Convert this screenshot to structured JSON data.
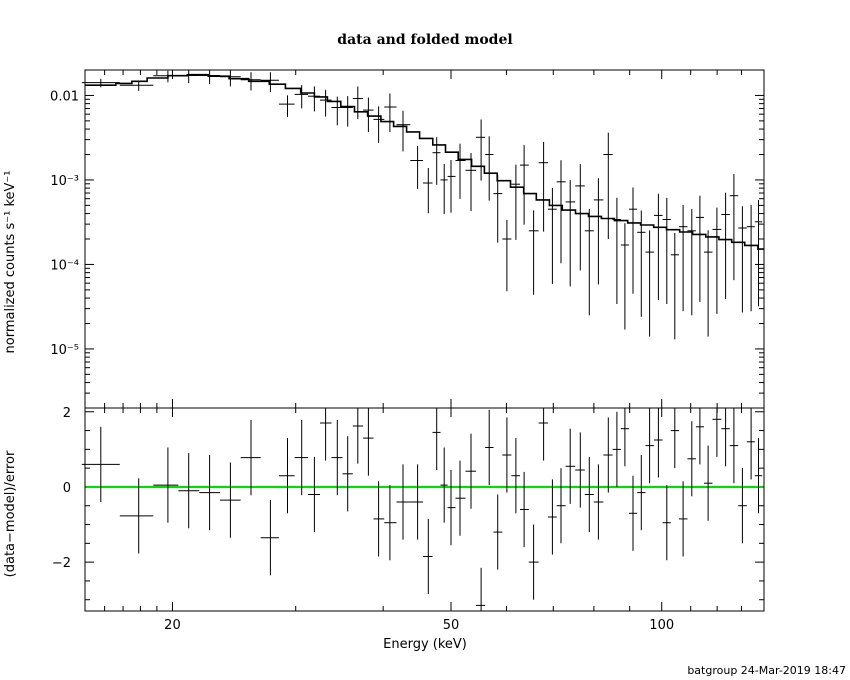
{
  "chart_data": [
    {
      "panel": "top",
      "type": "scatter",
      "title": "data and folded model",
      "ylabel": "normalized counts s⁻¹ keV⁻¹",
      "x_scale": "log",
      "y_scale": "log",
      "xlim": [
        15,
        140
      ],
      "ylim": [
        2e-06,
        0.02
      ],
      "y_ticks": [
        0.01,
        0.001,
        0.0001,
        1e-05
      ],
      "y_tick_labels": [
        "0.01",
        "10⁻³",
        "10⁻⁴",
        "10⁻⁵"
      ],
      "series": [
        {
          "style": "crosses",
          "x": [
            15.8,
            17.9,
            19.7,
            21.1,
            22.6,
            24.2,
            25.9,
            27.6,
            29.2,
            30.6,
            31.9,
            33.1,
            34.4,
            35.6,
            36.8,
            38.1,
            39.4,
            40.9,
            42.7,
            44.8,
            46.4,
            47.7,
            48.9,
            50.0,
            51.5,
            53.4,
            55.2,
            56.7,
            58.3,
            60.1,
            61.9,
            63.6,
            65.6,
            67.8,
            69.8,
            71.8,
            74.0,
            76.5,
            78.8,
            81.2,
            83.9,
            86.3,
            88.6,
            91.0,
            93.5,
            96.1,
            98.9,
            101.7,
            104.4,
            107.3,
            110.4,
            113.4,
            116.5,
            119.9,
            123.4,
            126.8,
            130.4,
            134.2,
            137.5
          ],
          "y": [
            0.0142,
            0.0132,
            0.0171,
            0.0172,
            0.0172,
            0.0166,
            0.0153,
            0.0151,
            0.0079,
            0.0103,
            0.0098,
            0.0088,
            0.0072,
            0.0072,
            0.0092,
            0.0067,
            0.0052,
            0.0073,
            0.0045,
            0.0017,
            0.00092,
            0.0021,
            0.001,
            0.0011,
            0.0017,
            0.0013,
            0.0032,
            0.002,
            0.00069,
            0.0002,
            0.00089,
            0.0015,
            0.00025,
            0.0016,
            0.00045,
            0.00095,
            0.00055,
            0.00085,
            0.00025,
            0.00058,
            0.002,
            0.00034,
            0.00017,
            0.00045,
            0.00024,
            0.00014,
            0.00038,
            0.00034,
            0.00013,
            0.00028,
            0.00025,
            0.00036,
            0.00014,
            0.00026,
            0.00039,
            0.00065,
            0.00027,
            0.00028,
            0.00032
          ]
        },
        {
          "style": "step-line",
          "x": [
            15.0,
            16.6,
            17.5,
            18.4,
            19.7,
            21.0,
            22.5,
            24.1,
            25.7,
            27.5,
            29.0,
            30.5,
            31.9,
            33.3,
            34.8,
            36.4,
            38.0,
            39.7,
            41.4,
            43.2,
            45.1,
            47.1,
            49.1,
            51.2,
            53.5,
            55.8,
            58.2,
            60.8,
            63.5,
            66.2,
            69.1,
            72.1,
            75.3,
            78.6,
            82.0,
            85.6,
            89.4,
            93.3,
            97.4,
            101.6,
            106.1,
            110.7,
            115.6,
            120.7,
            125.9,
            131.4,
            137.2
          ],
          "y": [
            0.0132,
            0.0139,
            0.0147,
            0.0161,
            0.0171,
            0.0176,
            0.0169,
            0.0158,
            0.0147,
            0.0136,
            0.0121,
            0.0107,
            0.0096,
            0.0085,
            0.0074,
            0.0064,
            0.0057,
            0.0049,
            0.0043,
            0.0037,
            0.0031,
            0.0026,
            0.00213,
            0.00175,
            0.00145,
            0.0012,
            0.00098,
            0.00082,
            0.00069,
            0.00058,
            0.0005,
            0.00044,
            0.0004,
            0.00037,
            0.00035,
            0.00033,
            0.00031,
            0.000293,
            0.000275,
            0.000258,
            0.000242,
            0.000227,
            0.000212,
            0.000197,
            0.000183,
            0.000168,
            0.000152
          ]
        }
      ]
    },
    {
      "panel": "bottom",
      "type": "scatter",
      "xlabel": "Energy (keV)",
      "ylabel": "(data−model)/error",
      "x_scale": "log",
      "xlim": [
        15,
        140
      ],
      "ylim": [
        -3.3,
        2.1
      ],
      "x_ticks": [
        20,
        50,
        100
      ],
      "x_tick_labels": [
        "20",
        "50",
        "100"
      ],
      "y_ticks": [
        2,
        0,
        -2
      ],
      "y_tick_labels": [
        "2",
        "0",
        "−2"
      ],
      "zero_line_color": "#00e000",
      "series": [
        {
          "style": "crosses",
          "x": [
            15.8,
            17.9,
            19.7,
            21.1,
            22.6,
            24.2,
            25.9,
            27.6,
            29.2,
            30.6,
            31.9,
            33.1,
            34.4,
            35.6,
            36.8,
            38.1,
            39.4,
            40.9,
            42.7,
            44.8,
            46.4,
            47.7,
            48.9,
            50.0,
            51.5,
            53.4,
            55.2,
            56.7,
            58.3,
            60.1,
            61.9,
            63.6,
            65.6,
            67.8,
            69.8,
            71.8,
            74.0,
            76.5,
            78.8,
            81.2,
            83.9,
            86.3,
            88.6,
            91.0,
            93.5,
            96.1,
            98.9,
            101.7,
            104.4,
            107.3,
            110.4,
            113.4,
            116.5,
            119.9,
            123.4,
            126.8,
            130.4,
            134.2,
            137.5
          ],
          "y": [
            0.6,
            -0.77,
            0.05,
            -0.1,
            -0.15,
            -0.35,
            0.78,
            -1.35,
            0.3,
            0.78,
            -0.2,
            1.7,
            0.78,
            0.35,
            1.62,
            1.3,
            -0.85,
            -0.95,
            -0.4,
            -0.4,
            -1.85,
            1.45,
            0.05,
            -0.55,
            -0.3,
            0.42,
            -3.15,
            1.05,
            -1.2,
            0.85,
            0.3,
            -0.6,
            -2.0,
            1.7,
            -0.8,
            -0.5,
            0.55,
            0.45,
            -0.2,
            -0.4,
            0.85,
            1.0,
            1.55,
            -0.7,
            -0.15,
            1.1,
            1.25,
            -0.95,
            1.5,
            -0.85,
            0.75,
            1.6,
            0.1,
            1.8,
            1.55,
            1.1,
            -0.5,
            1.2,
            0.3
          ]
        }
      ]
    }
  ],
  "footer_text": "batgroup 24-Mar-2019 18:47"
}
